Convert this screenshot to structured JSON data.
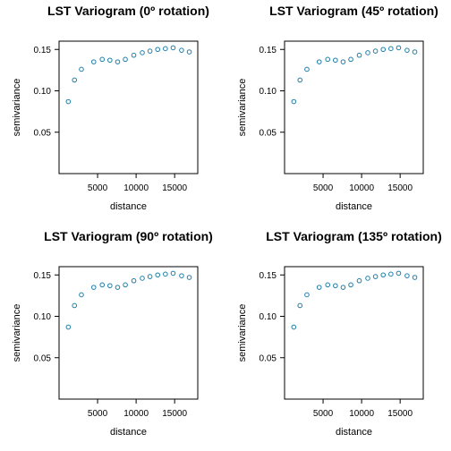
{
  "chart_data": [
    {
      "type": "scatter",
      "title": "LST Variogram (0º rotation)",
      "xlabel": "distance",
      "ylabel": "semivariance",
      "xlim": [
        0,
        18000
      ],
      "ylim": [
        0,
        0.16
      ],
      "xticks": [
        5000,
        10000,
        15000
      ],
      "yticks": [
        0.05,
        0.1,
        0.15
      ],
      "xtick_labels": [
        "5000",
        "10000",
        "15000"
      ],
      "ytick_labels": [
        "0.05",
        "0.10",
        "0.15"
      ],
      "grid": false,
      "marker_color": "#1f7fa8",
      "x": [
        1200,
        2000,
        2900,
        4500,
        5600,
        6600,
        7600,
        8600,
        9700,
        10800,
        11800,
        12800,
        13800,
        14800,
        15900,
        16900
      ],
      "y": [
        0.087,
        0.113,
        0.126,
        0.135,
        0.138,
        0.137,
        0.135,
        0.138,
        0.143,
        0.146,
        0.148,
        0.15,
        0.151,
        0.152,
        0.149,
        0.147
      ]
    },
    {
      "type": "scatter",
      "title": "LST Variogram (45º rotation)",
      "xlabel": "distance",
      "ylabel": "semivariance",
      "xlim": [
        0,
        18000
      ],
      "ylim": [
        0,
        0.16
      ],
      "xticks": [
        5000,
        10000,
        15000
      ],
      "yticks": [
        0.05,
        0.1,
        0.15
      ],
      "xtick_labels": [
        "5000",
        "10000",
        "15000"
      ],
      "ytick_labels": [
        "0.05",
        "0.10",
        "0.15"
      ],
      "grid": false,
      "marker_color": "#1f7fa8",
      "x": [
        1200,
        2000,
        2900,
        4500,
        5600,
        6600,
        7600,
        8600,
        9700,
        10800,
        11800,
        12800,
        13800,
        14800,
        15900,
        16900
      ],
      "y": [
        0.087,
        0.113,
        0.126,
        0.135,
        0.138,
        0.137,
        0.135,
        0.138,
        0.143,
        0.146,
        0.148,
        0.15,
        0.151,
        0.152,
        0.149,
        0.147
      ]
    },
    {
      "type": "scatter",
      "title": "LST Variogram (90º rotation)",
      "xlabel": "distance",
      "ylabel": "semivariance",
      "xlim": [
        0,
        18000
      ],
      "ylim": [
        0,
        0.16
      ],
      "xticks": [
        5000,
        10000,
        15000
      ],
      "yticks": [
        0.05,
        0.1,
        0.15
      ],
      "xtick_labels": [
        "5000",
        "10000",
        "15000"
      ],
      "ytick_labels": [
        "0.05",
        "0.10",
        "0.15"
      ],
      "grid": false,
      "marker_color": "#1f7fa8",
      "x": [
        1200,
        2000,
        2900,
        4500,
        5600,
        6600,
        7600,
        8600,
        9700,
        10800,
        11800,
        12800,
        13800,
        14800,
        15900,
        16900
      ],
      "y": [
        0.087,
        0.113,
        0.126,
        0.135,
        0.138,
        0.137,
        0.135,
        0.138,
        0.143,
        0.146,
        0.148,
        0.15,
        0.151,
        0.152,
        0.149,
        0.147
      ]
    },
    {
      "type": "scatter",
      "title": "LST Variogram (135º rotation)",
      "xlabel": "distance",
      "ylabel": "semivariance",
      "xlim": [
        0,
        18000
      ],
      "ylim": [
        0,
        0.16
      ],
      "xticks": [
        5000,
        10000,
        15000
      ],
      "yticks": [
        0.05,
        0.1,
        0.15
      ],
      "xtick_labels": [
        "5000",
        "10000",
        "15000"
      ],
      "ytick_labels": [
        "0.05",
        "0.10",
        "0.15"
      ],
      "grid": false,
      "marker_color": "#1f7fa8",
      "x": [
        1200,
        2000,
        2900,
        4500,
        5600,
        6600,
        7600,
        8600,
        9700,
        10800,
        11800,
        12800,
        13800,
        14800,
        15900,
        16900
      ],
      "y": [
        0.087,
        0.113,
        0.126,
        0.135,
        0.138,
        0.137,
        0.135,
        0.138,
        0.143,
        0.146,
        0.148,
        0.15,
        0.151,
        0.152,
        0.149,
        0.147
      ]
    }
  ]
}
